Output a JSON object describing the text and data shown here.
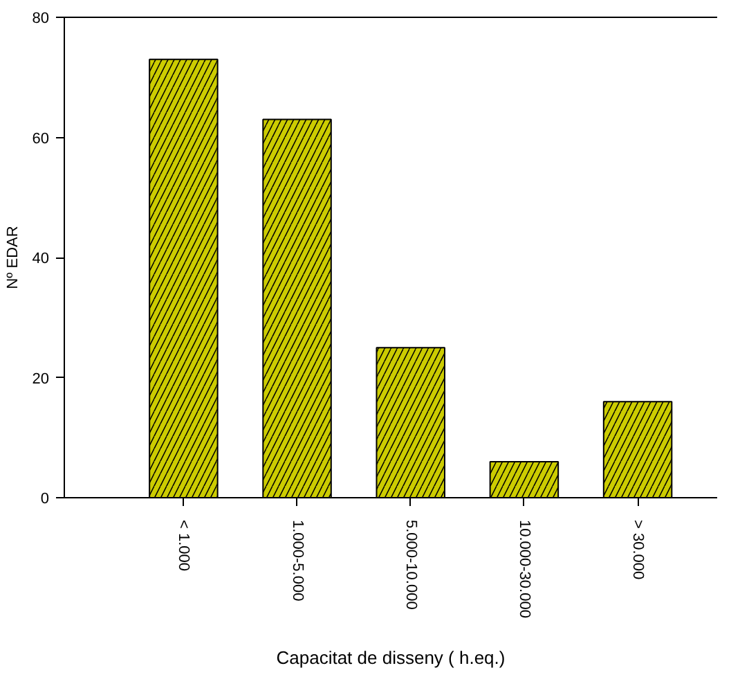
{
  "chart_data": {
    "type": "bar",
    "xlabel": "Capacitat de disseny ( h.eq.)",
    "ylabel": "Nº EDAR",
    "categories": [
      "< 1.000",
      "1.000-5.000",
      "5.000-10.000",
      "10.000-30.000",
      "> 30.000"
    ],
    "values": [
      73,
      63,
      25,
      6,
      16
    ],
    "color": "#cccc00",
    "ylim": [
      0,
      80
    ],
    "yticks": [
      0,
      20,
      40,
      60,
      80
    ]
  }
}
